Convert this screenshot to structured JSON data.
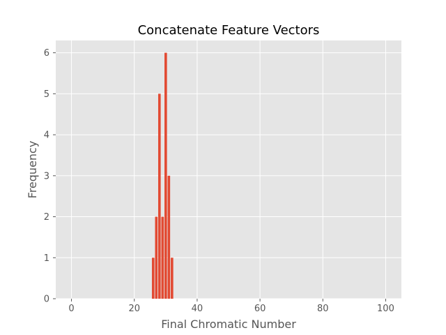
{
  "chart_data": {
    "type": "bar",
    "title": "Concatenate Feature Vectors",
    "xlabel": "Final Chromatic Number",
    "ylabel": "Frequency",
    "x": [
      26,
      27,
      28,
      29,
      30,
      31,
      32
    ],
    "values": [
      1,
      2,
      5,
      2,
      6,
      3,
      1
    ],
    "xlim": [
      -5,
      105
    ],
    "ylim": [
      0,
      6.3
    ],
    "xticks": [
      0,
      20,
      40,
      60,
      80,
      100
    ],
    "yticks": [
      0,
      1,
      2,
      3,
      4,
      5,
      6
    ],
    "grid": true,
    "colors": {
      "bar": "#E24A33",
      "plot_background": "#E5E5E5",
      "grid": "#FFFFFF"
    }
  }
}
